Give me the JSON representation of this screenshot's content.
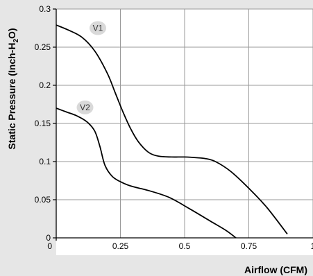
{
  "chart_data": {
    "type": "line",
    "xlabel": "Airflow (CFM)",
    "ylabel_main": "Static Pressure (Inch-H",
    "ylabel_sub": "2",
    "ylabel_end": "O)",
    "xlim": [
      0,
      1.0
    ],
    "ylim": [
      0,
      0.3
    ],
    "x_ticks": [
      0,
      0.25,
      0.5,
      0.75,
      1.0
    ],
    "x_tick_labels": [
      "0",
      "0.25",
      "0.5",
      "0.75",
      "1"
    ],
    "y_ticks": [
      0,
      0.05,
      0.1,
      0.15,
      0.2,
      0.25,
      0.3
    ],
    "y_tick_labels": [
      "0",
      "0.05",
      "0.1",
      "0.15",
      "0.2",
      "0.25",
      "0.3"
    ],
    "grid": true,
    "series": [
      {
        "name": "V1",
        "label_at": [
          0.2,
          0.275
        ],
        "color": "#000000",
        "points": [
          [
            0,
            0.279
          ],
          [
            0.05,
            0.272
          ],
          [
            0.1,
            0.263
          ],
          [
            0.15,
            0.245
          ],
          [
            0.2,
            0.215
          ],
          [
            0.23,
            0.19
          ],
          [
            0.26,
            0.165
          ],
          [
            0.29,
            0.143
          ],
          [
            0.32,
            0.126
          ],
          [
            0.36,
            0.112
          ],
          [
            0.4,
            0.107
          ],
          [
            0.45,
            0.106
          ],
          [
            0.5,
            0.106
          ],
          [
            0.55,
            0.105
          ],
          [
            0.58,
            0.104
          ],
          [
            0.62,
            0.1
          ],
          [
            0.68,
            0.087
          ],
          [
            0.75,
            0.065
          ],
          [
            0.82,
            0.04
          ],
          [
            0.9,
            0.005
          ]
        ]
      },
      {
        "name": "V2",
        "label_at": [
          0.15,
          0.171
        ],
        "color": "#000000",
        "points": [
          [
            0,
            0.17
          ],
          [
            0.04,
            0.165
          ],
          [
            0.08,
            0.16
          ],
          [
            0.12,
            0.152
          ],
          [
            0.15,
            0.14
          ],
          [
            0.17,
            0.12
          ],
          [
            0.19,
            0.095
          ],
          [
            0.22,
            0.08
          ],
          [
            0.26,
            0.072
          ],
          [
            0.3,
            0.067
          ],
          [
            0.36,
            0.062
          ],
          [
            0.44,
            0.053
          ],
          [
            0.52,
            0.038
          ],
          [
            0.6,
            0.022
          ],
          [
            0.66,
            0.01
          ],
          [
            0.7,
            0.0
          ]
        ]
      }
    ]
  },
  "colors": {
    "plot_background": "#ffffff",
    "outer_background": "#e6e6e6",
    "grid": "#999999",
    "axis": "#000000",
    "label_bubble": "#d9d9d9"
  }
}
